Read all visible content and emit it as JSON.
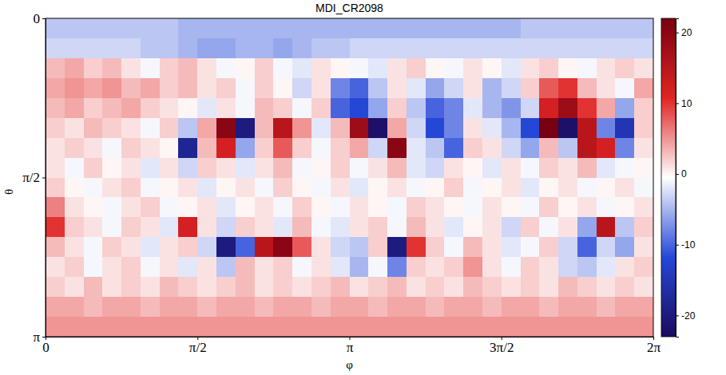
{
  "chart_data": {
    "type": "heatmap",
    "title": "MDI_CR2098",
    "x_label": "φ",
    "y_label": "θ",
    "xlim": [
      0,
      6.2832
    ],
    "ylim": [
      0,
      3.1416
    ],
    "xticks": [
      0,
      {
        "value": 1.5708,
        "label": "π/2"
      },
      {
        "value": 3.1416,
        "label": "π"
      },
      {
        "value": 4.7124,
        "label": "3π/2"
      },
      {
        "value": 6.2832,
        "label": "2π"
      }
    ],
    "yticks": [
      0,
      {
        "value": 1.5708,
        "label": "π/2"
      },
      {
        "value": 3.1416,
        "label": "π"
      }
    ],
    "zlim": [
      -23,
      22
    ],
    "zticks": [
      -20,
      -10,
      0,
      10,
      20
    ],
    "z": [
      [
        -4,
        -4,
        -4,
        -4,
        -4,
        -4,
        -4,
        -5,
        -5,
        -5,
        -5,
        -5,
        -5,
        -5,
        -5,
        -5,
        -5,
        -5,
        -5,
        -5,
        -5,
        -5,
        -5,
        -5,
        -5,
        -4,
        -4,
        -4,
        -4,
        -4,
        -4,
        -4
      ],
      [
        -3,
        -3,
        -3,
        -3,
        -3,
        -4,
        -4,
        -5,
        -6,
        -6,
        -5,
        -5,
        -6,
        -5,
        -4,
        -4,
        -3,
        -3,
        -3,
        -3,
        -3,
        -3,
        -3,
        -3,
        -3,
        -3,
        -3,
        -3,
        -3,
        -3,
        -3,
        -3
      ],
      [
        3,
        4,
        2,
        3,
        1,
        -1,
        2,
        3,
        1,
        -1,
        0,
        2,
        -1,
        -2,
        1,
        0,
        -1,
        -2,
        1,
        2,
        0,
        -1,
        1,
        0,
        -2,
        1,
        2,
        0,
        -1,
        1,
        2,
        1
      ],
      [
        4,
        5,
        4,
        5,
        3,
        4,
        2,
        3,
        1,
        2,
        -1,
        2,
        0,
        -3,
        1,
        -8,
        -10,
        -4,
        1,
        -2,
        -6,
        -3,
        1,
        -5,
        -3,
        2,
        8,
        10,
        3,
        1,
        -1,
        4
      ],
      [
        3,
        4,
        2,
        3,
        4,
        2,
        1,
        0,
        -2,
        1,
        -1,
        3,
        2,
        -1,
        2,
        -10,
        -12,
        -6,
        2,
        -4,
        -10,
        -8,
        -2,
        -5,
        -7,
        -3,
        12,
        18,
        10,
        4,
        -6,
        2
      ],
      [
        2,
        1,
        3,
        2,
        1,
        -1,
        2,
        -4,
        4,
        20,
        -20,
        3,
        15,
        5,
        -2,
        3,
        18,
        -22,
        4,
        -3,
        -12,
        -8,
        1,
        -2,
        -5,
        -12,
        22,
        -22,
        15,
        -8,
        -15,
        2
      ],
      [
        1,
        2,
        1,
        -1,
        2,
        1,
        0,
        -18,
        3,
        12,
        -6,
        2,
        8,
        2,
        -1,
        2,
        4,
        -3,
        20,
        -2,
        -4,
        -10,
        2,
        1,
        -3,
        -6,
        3,
        -4,
        15,
        12,
        -8,
        1
      ],
      [
        1,
        -1,
        2,
        0,
        1,
        -2,
        1,
        -3,
        2,
        1,
        -2,
        1,
        3,
        -1,
        0,
        2,
        -1,
        1,
        3,
        -2,
        -3,
        1,
        0,
        -2,
        1,
        -1,
        2,
        1,
        3,
        -2,
        -1,
        0
      ],
      [
        2,
        0,
        -1,
        1,
        2,
        -1,
        0,
        1,
        -2,
        0,
        1,
        -1,
        2,
        0,
        -1,
        1,
        -2,
        0,
        1,
        -1,
        0,
        2,
        -1,
        0,
        1,
        -2,
        0,
        1,
        -1,
        0,
        1,
        -1
      ],
      [
        6,
        1,
        0,
        -1,
        1,
        2,
        -1,
        0,
        1,
        -2,
        0,
        1,
        -1,
        2,
        0,
        -1,
        1,
        0,
        -1,
        2,
        1,
        0,
        -1,
        1,
        0,
        -1,
        2,
        0,
        1,
        -1,
        0,
        1
      ],
      [
        10,
        2,
        1,
        -1,
        2,
        1,
        -2,
        12,
        1,
        -3,
        2,
        1,
        -2,
        3,
        -1,
        -2,
        1,
        2,
        -1,
        3,
        1,
        -2,
        0,
        1,
        -3,
        2,
        -1,
        1,
        -6,
        15,
        -4,
        2
      ],
      [
        3,
        1,
        -1,
        2,
        1,
        -2,
        1,
        2,
        -3,
        -20,
        -10,
        15,
        20,
        8,
        1,
        -3,
        -4,
        2,
        -20,
        10,
        2,
        -1,
        3,
        1,
        -2,
        -1,
        2,
        -3,
        -10,
        -3,
        -6,
        1
      ],
      [
        1,
        2,
        -1,
        1,
        2,
        -1,
        1,
        -2,
        1,
        -4,
        3,
        1,
        2,
        -1,
        1,
        -2,
        -5,
        -1,
        -8,
        2,
        1,
        2,
        5,
        1,
        -1,
        2,
        1,
        -3,
        -4,
        -2,
        1,
        2
      ],
      [
        2,
        1,
        3,
        1,
        2,
        1,
        3,
        2,
        1,
        2,
        3,
        1,
        2,
        1,
        2,
        3,
        1,
        2,
        3,
        1,
        2,
        1,
        3,
        2,
        1,
        2,
        1,
        3,
        2,
        1,
        2,
        1
      ],
      [
        4,
        4,
        3,
        4,
        4,
        3,
        4,
        4,
        3,
        4,
        4,
        3,
        4,
        4,
        3,
        4,
        4,
        3,
        4,
        4,
        3,
        4,
        4,
        3,
        4,
        4,
        3,
        4,
        4,
        3,
        4,
        4
      ],
      [
        5,
        5,
        5,
        5,
        5,
        5,
        5,
        5,
        5,
        5,
        5,
        5,
        5,
        5,
        5,
        5,
        5,
        5,
        5,
        5,
        5,
        5,
        5,
        5,
        5,
        5,
        5,
        5,
        5,
        5,
        5,
        5
      ]
    ]
  }
}
